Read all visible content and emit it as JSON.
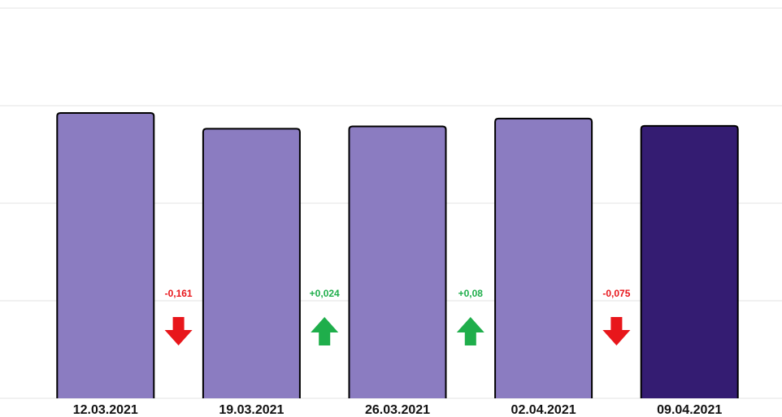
{
  "chart_data": {
    "type": "bar",
    "categories": [
      "12.03.2021",
      "19.03.2021",
      "26.03.2021",
      "02.04.2021",
      "09.04.2021"
    ],
    "values": [
      2.925,
      2.764,
      2.788,
      2.868,
      2.793
    ],
    "colors": [
      "#8b7cc1",
      "#8b7cc1",
      "#8b7cc1",
      "#8b7cc1",
      "#341c72"
    ],
    "ylim": [
      0,
      4
    ],
    "yticks": [
      0,
      1,
      2,
      3,
      4
    ],
    "grid": true,
    "annotations": [
      {
        "text": "-0,161",
        "color": "#e8161b",
        "direction": "down"
      },
      {
        "text": "+0,024",
        "color": "#1fae4b",
        "direction": "up"
      },
      {
        "text": "+0,08",
        "color": "#1fae4b",
        "direction": "up"
      },
      {
        "text": "-0,075",
        "color": "#e8161b",
        "direction": "down"
      }
    ]
  }
}
